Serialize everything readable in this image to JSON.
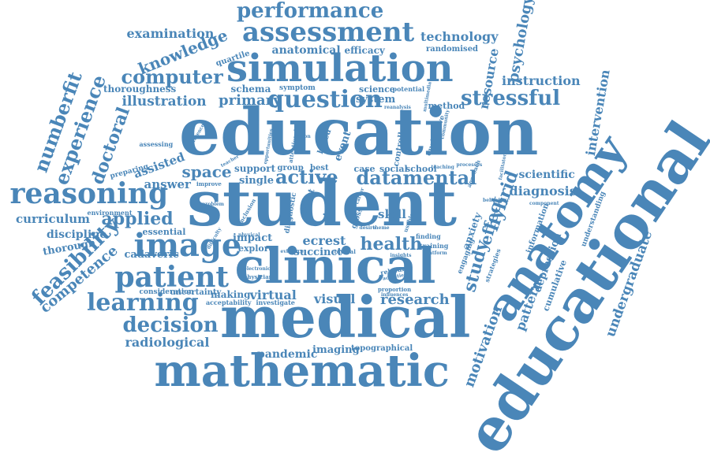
{
  "colors": {
    "word": "#4a86b8",
    "background": "#ffffff"
  },
  "words": [
    "education",
    "student",
    "medical",
    "clinical",
    "mathematic",
    "educational",
    "anatomy",
    "simulation",
    "assessment",
    "performance",
    "reasoning",
    "image",
    "patient",
    "learning",
    "decision",
    "question",
    "stressful",
    "computer",
    "numberfit",
    "experience",
    "doctoral",
    "feasibility",
    "competence",
    "knowledge",
    "examination",
    "technology",
    "psychology",
    "anatomical",
    "efficacy",
    "randomised",
    "resource",
    "instruction",
    "illustration",
    "thoroughness",
    "primary",
    "schema",
    "symptom",
    "science",
    "potential",
    "system",
    "method",
    "intervention",
    "quartile",
    "active",
    "datamental",
    "health",
    "research",
    "hybrid",
    "study",
    "effect",
    "diagnosis",
    "scientific",
    "curriculum",
    "applied",
    "discipline",
    "thorough",
    "space",
    "answer",
    "assisted",
    "preparing",
    "assessing",
    "environment",
    "essential",
    "cadaveric",
    "radiological",
    "pandemic",
    "imaging",
    "topographical",
    "visual",
    "virtual",
    "making",
    "acceptability",
    "investigate",
    "consideration",
    "uncertainty",
    "impact",
    "explore",
    "succinct",
    "ecrest",
    "skill",
    "training",
    "finding",
    "motivation",
    "pattern",
    "depression",
    "cumulative",
    "undergraduate",
    "anxiety",
    "engaging",
    "information",
    "strategies",
    "understanding",
    "support",
    "single",
    "group",
    "best",
    "case",
    "social",
    "school",
    "event",
    "based",
    "controlled",
    "qualitative",
    "attentional",
    "improve",
    "problem",
    "inclusion",
    "physician",
    "electronic",
    "difficulty",
    "physical",
    "evidence",
    "theme",
    "proportion",
    "influences",
    "textual",
    "relevant",
    "activities",
    "facilitator",
    "component",
    "lesson",
    "multimedia",
    "community",
    "reanalysis",
    "opportunities",
    "preference",
    "teacher",
    "career",
    "affect",
    "trial",
    "gross",
    "diagnostic",
    "processes",
    "teaching",
    "approach",
    "behaviour",
    "platform",
    "insights",
    "usable",
    "desire"
  ]
}
